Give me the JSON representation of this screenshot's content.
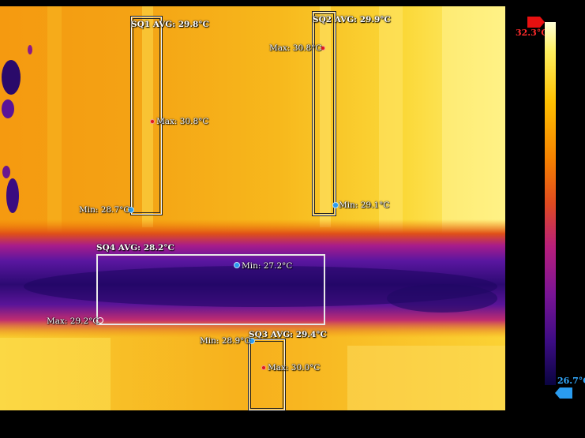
{
  "scale": {
    "max_label": "32.3°C",
    "min_label": "26.7°C",
    "max_color": "#ff2a2a",
    "min_color": "#33aaff"
  },
  "regions": [
    {
      "id": "sq1",
      "label": "SQ1 AVG: 29.8°C",
      "max": "Max: 30.8°C",
      "min": "Min: 28.7°C"
    },
    {
      "id": "sq2",
      "label": "SQ2 AVG: 29.9°C",
      "max": "Max: 30.8°C",
      "min": "Min: 29.1°C"
    },
    {
      "id": "sq3",
      "label": "SQ3 AVG: 29.4°C",
      "max": "Max: 30.0°C",
      "min": "Min: 28.9°C"
    },
    {
      "id": "sq4",
      "label": "SQ4 AVG: 28.2°C",
      "max": "Max: 29.2°C",
      "min": "Min: 27.2°C"
    }
  ],
  "palette": {
    "hot": "#fffde0",
    "warm": "#ffc400",
    "mid": "#f07c00",
    "cool": "#b01e8c",
    "cold": "#2a0a6a"
  }
}
